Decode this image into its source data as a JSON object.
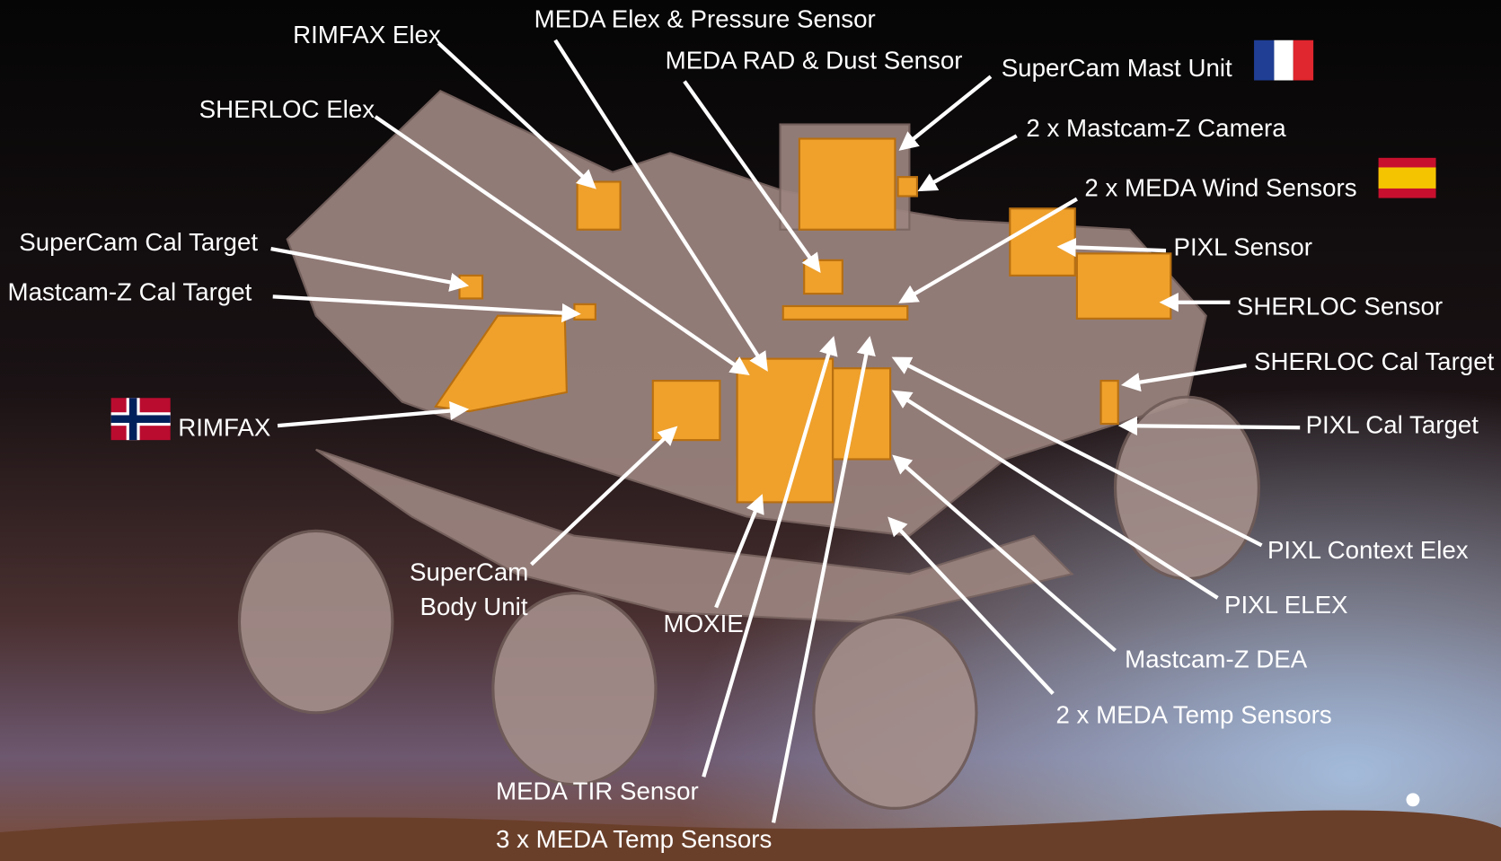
{
  "labels": [
    {
      "text": "MEDA Elex & Pressure Sensor"
    },
    {
      "text": "RIMFAX Elex"
    },
    {
      "text": "MEDA RAD & Dust Sensor"
    },
    {
      "text": "SuperCam Mast Unit"
    },
    {
      "text": "SHERLOC Elex"
    },
    {
      "text": "2 x Mastcam-Z Camera"
    },
    {
      "text": "2 x MEDA Wind Sensors"
    },
    {
      "text": "SuperCam Cal Target"
    },
    {
      "text": "PIXL Sensor"
    },
    {
      "text": "Mastcam-Z Cal Target"
    },
    {
      "text": "SHERLOC Sensor"
    },
    {
      "text": "SHERLOC Cal Target"
    },
    {
      "text": "RIMFAX"
    },
    {
      "text": "PIXL Cal Target"
    },
    {
      "text": "PIXL Context Elex"
    },
    {
      "lines": [
        "SuperCam",
        "Body Unit"
      ]
    },
    {
      "text": "PIXL ELEX"
    },
    {
      "text": "MOXIE"
    },
    {
      "text": "Mastcam-Z DEA"
    },
    {
      "text": "2 x MEDA Temp Sensors"
    },
    {
      "text": "MEDA TIR Sensor"
    },
    {
      "text": "3 x MEDA Temp Sensors"
    }
  ]
}
